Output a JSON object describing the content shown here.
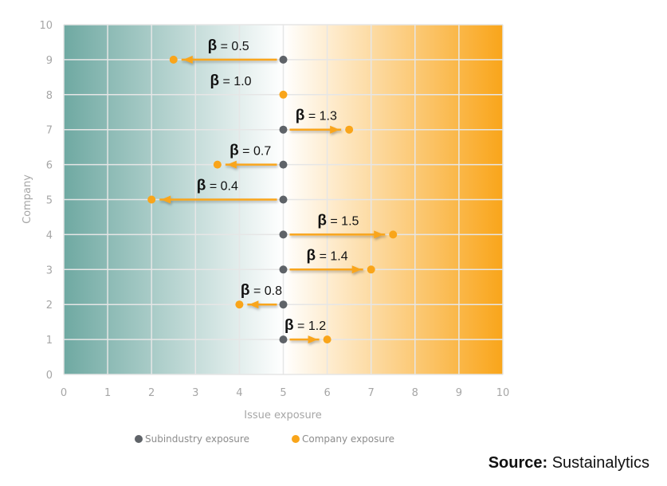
{
  "chart_data": {
    "type": "scatter",
    "title": "",
    "xlabel": "Issue exposure",
    "ylabel": "Company",
    "xlim": [
      0,
      10
    ],
    "ylim": [
      0,
      10
    ],
    "xticks": [
      "0",
      "1",
      "2",
      "3",
      "4",
      "5",
      "6",
      "7",
      "8",
      "9",
      "10"
    ],
    "yticks": [
      "0",
      "1",
      "2",
      "3",
      "4",
      "5",
      "6",
      "7",
      "8",
      "9",
      "10"
    ],
    "grid": true,
    "legend_position": "bottom",
    "series": [
      {
        "name": "Subindustry exposure",
        "color": "#5f6368"
      },
      {
        "name": "Company exposure",
        "color": "#f9a51a"
      }
    ],
    "points": [
      {
        "company": 9,
        "subindustry": 5,
        "company_exposure": 2.5,
        "beta_label": "β = 0.5"
      },
      {
        "company": 8,
        "subindustry": 5,
        "company_exposure": 5.0,
        "beta_label": "β = 1.0"
      },
      {
        "company": 7,
        "subindustry": 5,
        "company_exposure": 6.5,
        "beta_label": "β = 1.3"
      },
      {
        "company": 6,
        "subindustry": 5,
        "company_exposure": 3.5,
        "beta_label": "β = 0.7"
      },
      {
        "company": 5,
        "subindustry": 5,
        "company_exposure": 2.0,
        "beta_label": "β = 0.4"
      },
      {
        "company": 4,
        "subindustry": 5,
        "company_exposure": 7.5,
        "beta_label": "β = 1.5"
      },
      {
        "company": 3,
        "subindustry": 5,
        "company_exposure": 7.0,
        "beta_label": "β = 1.4"
      },
      {
        "company": 2,
        "subindustry": 5,
        "company_exposure": 4.0,
        "beta_label": "β = 0.8"
      },
      {
        "company": 1,
        "subindustry": 5,
        "company_exposure": 6.0,
        "beta_label": "β = 1.2"
      }
    ],
    "gradient_colors": {
      "low": "#6fa9a2",
      "mid": "#ffffff",
      "high": "#f9a51a"
    }
  },
  "source": {
    "label": "Source:",
    "value": "Sustainalytics"
  }
}
